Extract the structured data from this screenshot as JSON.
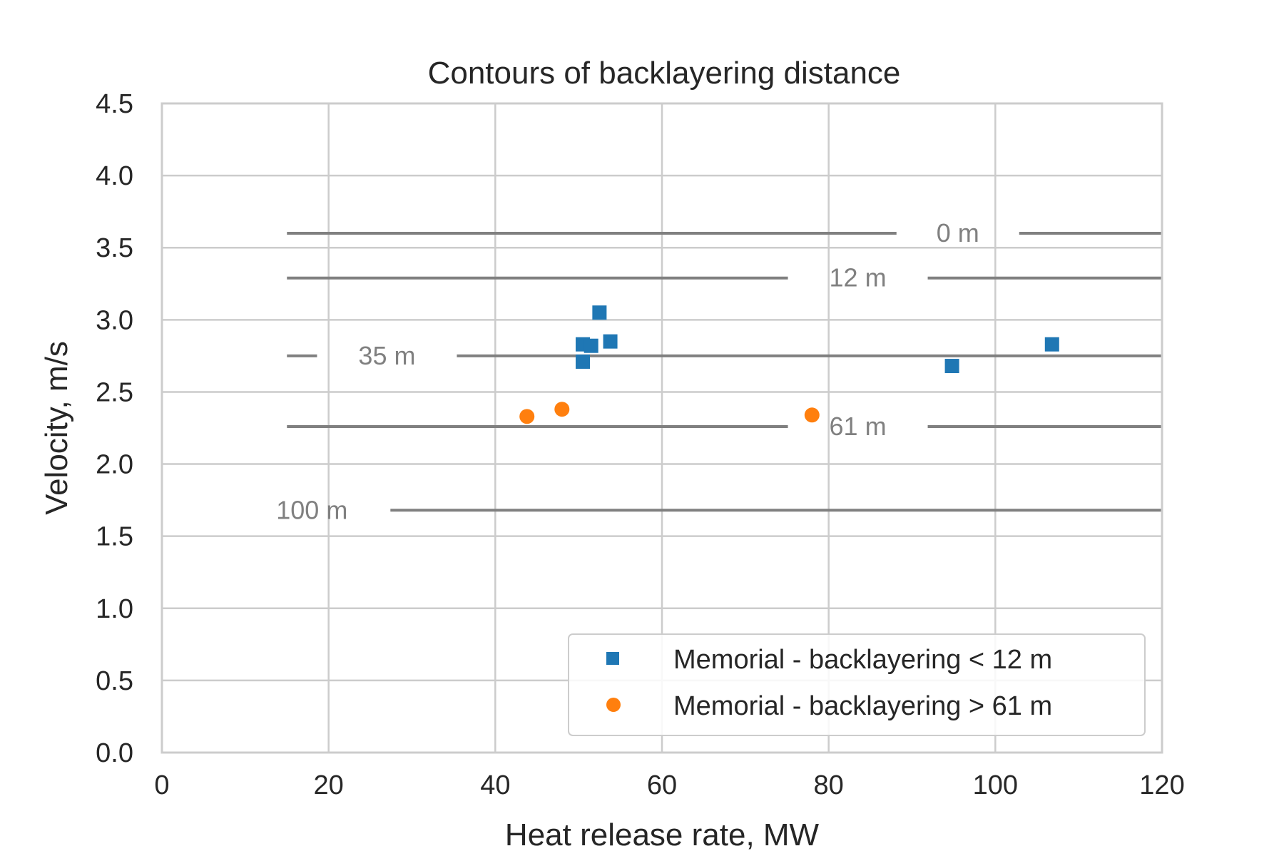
{
  "chart_data": {
    "type": "scatter",
    "title": "Contours of backlayering distance",
    "xlabel": "Heat release rate, MW",
    "ylabel": "Velocity, m/s",
    "xlim": [
      0,
      120
    ],
    "ylim": [
      0,
      4.5
    ],
    "x_ticks": [
      "0",
      "20",
      "40",
      "60",
      "80",
      "100",
      "120"
    ],
    "y_ticks": [
      "0.0",
      "0.5",
      "1.0",
      "1.5",
      "2.0",
      "2.5",
      "3.0",
      "3.5",
      "4.0",
      "4.5"
    ],
    "grid": true,
    "legend_position": "lower-right",
    "contours": [
      {
        "label": "0 m",
        "y": 3.6,
        "x_range": [
          15,
          120
        ],
        "label_x": 95.5
      },
      {
        "label": "12 m",
        "y": 3.29,
        "x_range": [
          15,
          120
        ],
        "label_x": 83.5
      },
      {
        "label": "35 m",
        "y": 2.75,
        "x_range": [
          15,
          120
        ],
        "label_x": 27
      },
      {
        "label": "61 m",
        "y": 2.26,
        "x_range": [
          15,
          120
        ],
        "label_x": 83.5
      },
      {
        "label": "100 m",
        "y": 1.68,
        "x_range": [
          15,
          120
        ],
        "label_x": 18
      }
    ],
    "series": [
      {
        "name": "Memorial - backlayering < 12 m",
        "marker": "square",
        "color": "#1f77b4",
        "points": [
          {
            "x": 52.5,
            "y": 3.05
          },
          {
            "x": 50.5,
            "y": 2.83
          },
          {
            "x": 51.5,
            "y": 2.82
          },
          {
            "x": 53.8,
            "y": 2.85
          },
          {
            "x": 50.5,
            "y": 2.71
          },
          {
            "x": 94.8,
            "y": 2.68
          },
          {
            "x": 106.8,
            "y": 2.83
          }
        ]
      },
      {
        "name": "Memorial - backlayering > 61 m",
        "marker": "circle",
        "color": "#ff7f0e",
        "points": [
          {
            "x": 43.8,
            "y": 2.33
          },
          {
            "x": 48.0,
            "y": 2.38
          },
          {
            "x": 78.0,
            "y": 2.34
          }
        ]
      }
    ]
  }
}
